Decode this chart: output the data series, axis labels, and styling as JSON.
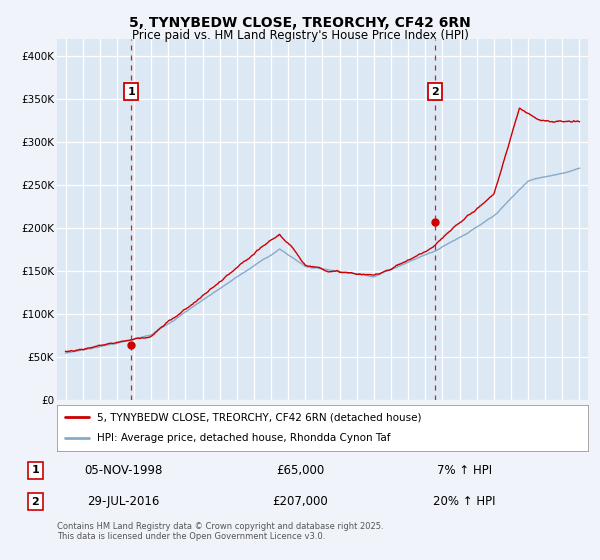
{
  "title": "5, TYNYBEDW CLOSE, TREORCHY, CF42 6RN",
  "subtitle": "Price paid vs. HM Land Registry's House Price Index (HPI)",
  "title_fontsize": 10,
  "subtitle_fontsize": 8.5,
  "bg_color": "#f0f4fa",
  "plot_bg_color": "#dce9f5",
  "grid_color": "#ffffff",
  "legend_label_red": "5, TYNYBEDW CLOSE, TREORCHY, CF42 6RN (detached house)",
  "legend_label_blue": "HPI: Average price, detached house, Rhondda Cynon Taf",
  "red_color": "#cc0000",
  "blue_color": "#88aac8",
  "marker1_date": 1998.84,
  "marker1_value": 65000,
  "marker2_date": 2016.57,
  "marker2_value": 207000,
  "annotation1_label": "1",
  "annotation1_date": "05-NOV-1998",
  "annotation1_price": "£65,000",
  "annotation1_hpi": "7% ↑ HPI",
  "annotation2_label": "2",
  "annotation2_date": "29-JUL-2016",
  "annotation2_price": "£207,000",
  "annotation2_hpi": "20% ↑ HPI",
  "footer": "Contains HM Land Registry data © Crown copyright and database right 2025.\nThis data is licensed under the Open Government Licence v3.0.",
  "ylim": [
    0,
    420000
  ],
  "xlim": [
    1994.5,
    2025.5
  ],
  "yticks": [
    0,
    50000,
    100000,
    150000,
    200000,
    250000,
    300000,
    350000,
    400000
  ],
  "ytick_labels": [
    "£0",
    "£50K",
    "£100K",
    "£150K",
    "£200K",
    "£250K",
    "£300K",
    "£350K",
    "£400K"
  ],
  "xticks": [
    1995,
    1996,
    1997,
    1998,
    1999,
    2000,
    2001,
    2002,
    2003,
    2004,
    2005,
    2006,
    2007,
    2008,
    2009,
    2010,
    2011,
    2012,
    2013,
    2014,
    2015,
    2016,
    2017,
    2018,
    2019,
    2020,
    2021,
    2022,
    2023,
    2024,
    2025
  ]
}
